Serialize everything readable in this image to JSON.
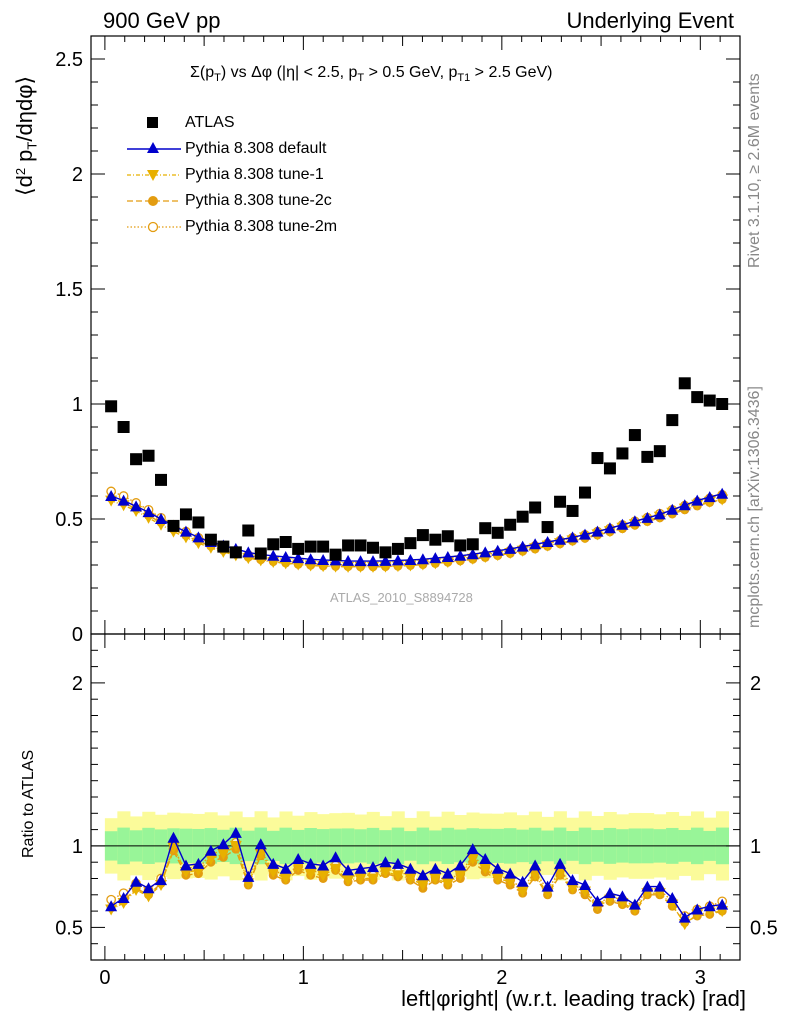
{
  "header": {
    "left": "900 GeV pp",
    "right": "Underlying Event"
  },
  "side_labels": {
    "rivet": "Rivet 3.1.10, ≥ 2.6M events",
    "mcplots": "mcplots.cern.ch [arXiv:1306.3436]"
  },
  "watermark": "ATLAS_2010_S8894728",
  "chart_data": [
    {
      "type": "scatter",
      "title": "Σ(p_T) vs Δφ (|η| < 2.5, p_T > 0.5 GeV, p_T1 > 2.5 GeV)",
      "title_parts": {
        "a": "Σ(p",
        "a_sub": "T",
        "b": ") vs Δφ (|η| < 2.5, p",
        "b_sub": "T",
        "c": " > 0.5 GeV, p",
        "c_sub": "T1",
        "d": " > 2.5 GeV)"
      },
      "ylabel": "⟨d² p_T/dηdφ⟩",
      "ylabel_parts": {
        "a": "⟨d",
        "sup": "2",
        "b": " p",
        "sub": "T",
        "c": "/dηdφ⟩"
      },
      "xlim": [
        -0.07,
        3.2
      ],
      "ylim": [
        0,
        2.6
      ],
      "y_ticks": [
        0,
        0.5,
        1,
        1.5,
        2,
        2.5
      ],
      "y_tick_labels": [
        "0",
        "0.5",
        "1",
        "1.5",
        "2",
        "2.5"
      ],
      "legend_position": "top-left",
      "series": [
        {
          "name": "ATLAS",
          "color": "#000000",
          "values": [
            0.99,
            0.9,
            0.76,
            0.775,
            0.67,
            0.47,
            0.52,
            0.485,
            0.41,
            0.38,
            0.355,
            0.45,
            0.35,
            0.39,
            0.4,
            0.37,
            0.38,
            0.38,
            0.345,
            0.385,
            0.385,
            0.375,
            0.355,
            0.37,
            0.395,
            0.43,
            0.41,
            0.425,
            0.385,
            0.39,
            0.46,
            0.44,
            0.475,
            0.51,
            0.55,
            0.465,
            0.575,
            0.535,
            0.615,
            0.765,
            0.72,
            0.785,
            0.865,
            0.77,
            0.795,
            0.93,
            1.09,
            1.03,
            1.015,
            1.0
          ]
        },
        {
          "name": "Pythia 8.308 default",
          "color": "#0000cc",
          "values": [
            0.6,
            0.58,
            0.555,
            0.53,
            0.5,
            0.47,
            0.445,
            0.42,
            0.4,
            0.385,
            0.37,
            0.355,
            0.345,
            0.34,
            0.335,
            0.33,
            0.325,
            0.322,
            0.32,
            0.318,
            0.317,
            0.317,
            0.318,
            0.32,
            0.322,
            0.325,
            0.33,
            0.335,
            0.34,
            0.347,
            0.355,
            0.362,
            0.37,
            0.38,
            0.39,
            0.4,
            0.41,
            0.42,
            0.432,
            0.445,
            0.46,
            0.475,
            0.49,
            0.505,
            0.52,
            0.54,
            0.56,
            0.58,
            0.595,
            0.61
          ]
        },
        {
          "name": "Pythia 8.308 tune-1",
          "color": "#e8b000",
          "values": [
            0.58,
            0.56,
            0.535,
            0.505,
            0.475,
            0.445,
            0.42,
            0.395,
            0.375,
            0.357,
            0.342,
            0.33,
            0.32,
            0.313,
            0.307,
            0.302,
            0.298,
            0.295,
            0.293,
            0.292,
            0.292,
            0.292,
            0.293,
            0.295,
            0.298,
            0.302,
            0.307,
            0.313,
            0.32,
            0.327,
            0.335,
            0.343,
            0.352,
            0.362,
            0.373,
            0.384,
            0.395,
            0.407,
            0.42,
            0.433,
            0.447,
            0.462,
            0.477,
            0.493,
            0.51,
            0.527,
            0.545,
            0.562,
            0.575,
            0.585
          ]
        },
        {
          "name": "Pythia 8.308 tune-2c",
          "color": "#e39c10",
          "values": [
            0.59,
            0.57,
            0.545,
            0.515,
            0.485,
            0.455,
            0.428,
            0.403,
            0.382,
            0.364,
            0.348,
            0.334,
            0.323,
            0.315,
            0.309,
            0.303,
            0.299,
            0.296,
            0.294,
            0.293,
            0.292,
            0.292,
            0.293,
            0.295,
            0.298,
            0.302,
            0.307,
            0.312,
            0.318,
            0.325,
            0.333,
            0.341,
            0.35,
            0.36,
            0.37,
            0.381,
            0.392,
            0.404,
            0.416,
            0.43,
            0.444,
            0.458,
            0.473,
            0.489,
            0.505,
            0.522,
            0.54,
            0.557,
            0.572,
            0.585
          ]
        },
        {
          "name": "Pythia 8.308 tune-2m",
          "color": "#e39c10",
          "values": [
            0.62,
            0.6,
            0.57,
            0.54,
            0.505,
            0.475,
            0.445,
            0.418,
            0.395,
            0.375,
            0.358,
            0.343,
            0.332,
            0.323,
            0.317,
            0.311,
            0.307,
            0.304,
            0.302,
            0.301,
            0.301,
            0.301,
            0.302,
            0.304,
            0.307,
            0.311,
            0.316,
            0.322,
            0.328,
            0.336,
            0.344,
            0.353,
            0.362,
            0.372,
            0.383,
            0.394,
            0.406,
            0.418,
            0.431,
            0.445,
            0.459,
            0.474,
            0.49,
            0.506,
            0.523,
            0.54,
            0.558,
            0.575,
            0.59,
            0.605
          ]
        }
      ]
    },
    {
      "type": "line",
      "ylabel": "Ratio to ATLAS",
      "xlabel": "left|φright| (w.r.t. leading track) [rad]",
      "xlim": [
        -0.07,
        3.2
      ],
      "ylim": [
        0.3,
        2.3
      ],
      "x_ticks": [
        0,
        1,
        2,
        3
      ],
      "x_tick_labels": [
        "0",
        "1",
        "2",
        "3"
      ],
      "y_ticks": [
        0.5,
        1,
        2
      ],
      "y_tick_labels": [
        "0.5",
        "1",
        "2"
      ],
      "reference_line": 1,
      "uncertainty_bands": {
        "inner_color": "#98f598",
        "outer_color": "#fbfb9a",
        "inner_halfwidth": 0.09,
        "outer_halfwidth": 0.17
      },
      "series": [
        {
          "name": "Pythia 8.308 default",
          "color": "#0000cc",
          "values": [
            0.63,
            0.68,
            0.78,
            0.74,
            0.79,
            1.05,
            0.88,
            0.89,
            0.97,
            1.01,
            1.08,
            0.81,
            1.01,
            0.89,
            0.86,
            0.92,
            0.89,
            0.88,
            0.93,
            0.85,
            0.86,
            0.87,
            0.9,
            0.89,
            0.86,
            0.82,
            0.86,
            0.83,
            0.88,
            0.98,
            0.92,
            0.86,
            0.83,
            0.78,
            0.88,
            0.75,
            0.89,
            0.79,
            0.76,
            0.66,
            0.71,
            0.69,
            0.64,
            0.75,
            0.75,
            0.68,
            0.56,
            0.61,
            0.63,
            0.64
          ]
        },
        {
          "name": "Pythia 8.308 tune-1",
          "color": "#e8b000",
          "values": [
            0.61,
            0.65,
            0.73,
            0.69,
            0.76,
            0.99,
            0.84,
            0.85,
            0.92,
            0.95,
            1.0,
            0.77,
            0.95,
            0.84,
            0.8,
            0.87,
            0.83,
            0.82,
            0.86,
            0.79,
            0.8,
            0.8,
            0.84,
            0.82,
            0.8,
            0.76,
            0.8,
            0.77,
            0.82,
            0.92,
            0.86,
            0.8,
            0.78,
            0.72,
            0.82,
            0.71,
            0.83,
            0.74,
            0.72,
            0.63,
            0.67,
            0.65,
            0.61,
            0.71,
            0.71,
            0.64,
            0.52,
            0.58,
            0.59,
            0.6
          ]
        },
        {
          "name": "Pythia 8.308 tune-2c",
          "color": "#e39c10",
          "values": [
            0.62,
            0.66,
            0.74,
            0.7,
            0.77,
            0.97,
            0.82,
            0.83,
            0.9,
            0.93,
            0.98,
            0.76,
            0.94,
            0.82,
            0.79,
            0.85,
            0.82,
            0.8,
            0.85,
            0.78,
            0.79,
            0.79,
            0.83,
            0.81,
            0.79,
            0.74,
            0.79,
            0.76,
            0.8,
            0.9,
            0.84,
            0.79,
            0.76,
            0.71,
            0.81,
            0.7,
            0.82,
            0.73,
            0.7,
            0.61,
            0.66,
            0.64,
            0.6,
            0.7,
            0.7,
            0.63,
            0.53,
            0.57,
            0.58,
            0.6
          ]
        },
        {
          "name": "Pythia 8.308 tune-2m",
          "color": "#e39c10",
          "values": [
            0.67,
            0.71,
            0.77,
            0.73,
            0.8,
            0.98,
            0.85,
            0.86,
            0.95,
            0.97,
            1.02,
            0.79,
            0.97,
            0.85,
            0.82,
            0.88,
            0.85,
            0.83,
            0.88,
            0.81,
            0.82,
            0.82,
            0.86,
            0.84,
            0.82,
            0.77,
            0.81,
            0.79,
            0.83,
            0.94,
            0.87,
            0.82,
            0.79,
            0.74,
            0.84,
            0.73,
            0.85,
            0.76,
            0.73,
            0.64,
            0.69,
            0.67,
            0.63,
            0.73,
            0.73,
            0.66,
            0.57,
            0.61,
            0.63,
            0.66
          ]
        }
      ]
    }
  ]
}
